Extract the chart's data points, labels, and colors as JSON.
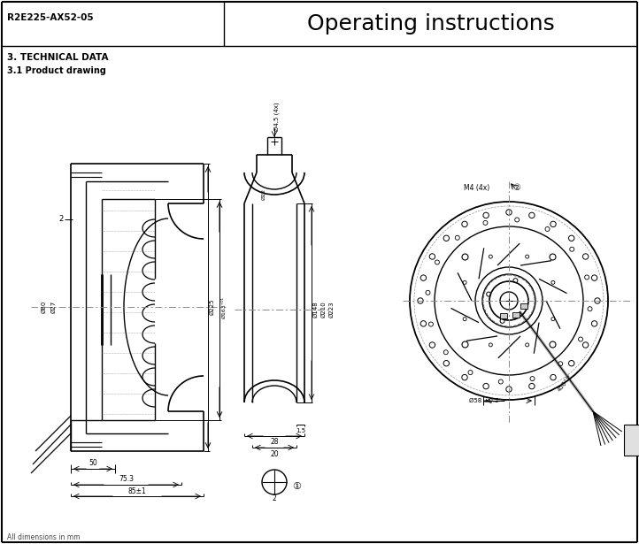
{
  "title_left": "R2E225-AX52-05",
  "title_right": "Operating instructions",
  "section_title": "3. TECHNICAL DATA",
  "subsection_title": "3.1 Product drawing",
  "footer": "All dimensions in mm",
  "bg_color": "#ffffff",
  "lc": "#000000",
  "dc": "#000000",
  "cc": "#888888"
}
